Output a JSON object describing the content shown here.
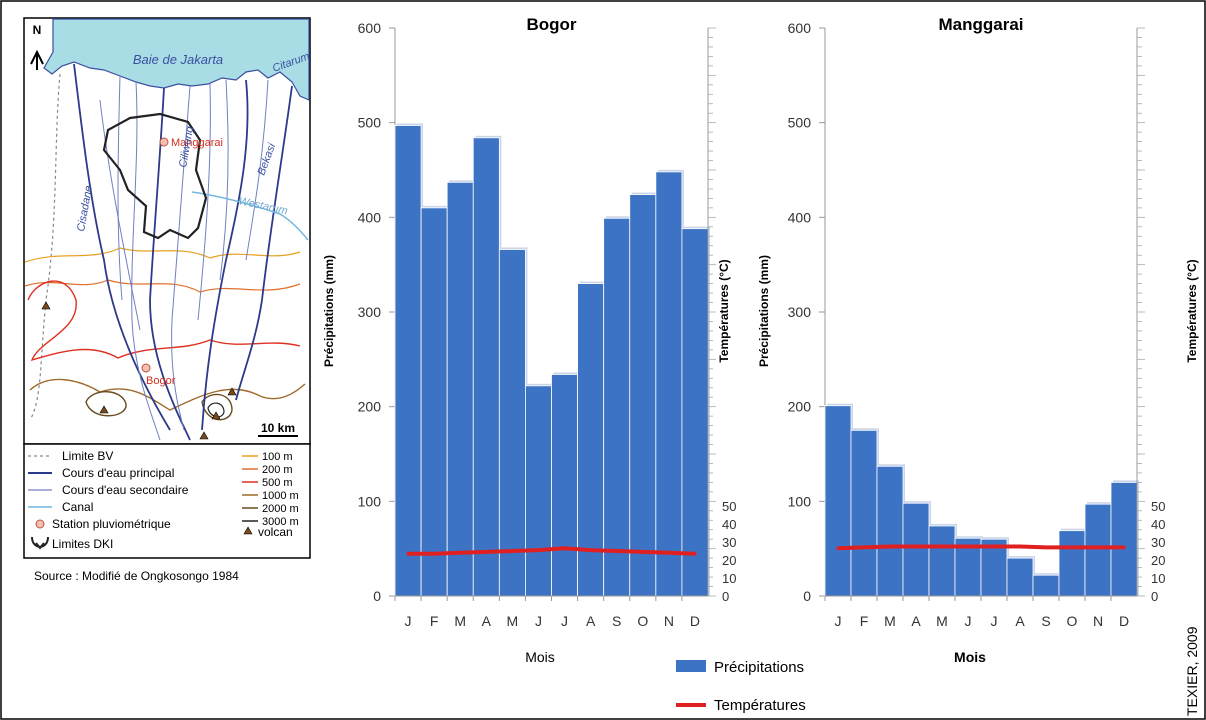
{
  "map": {
    "sea_label": "Baie de Jakarta",
    "north_label": "N",
    "scale_label": "10 km",
    "station_labels": [
      "Manggarai",
      "Bogor"
    ],
    "river_labels": [
      "Citarum",
      "Ciliwung",
      "Bekasi",
      "Cisadane",
      "Westarum"
    ],
    "legend_left": [
      "Limite BV",
      "Cours d'eau principal",
      "Cours d'eau secondaire",
      "Canal",
      "Station pluviométrique",
      "Limites DKI"
    ],
    "legend_right": [
      "100 m",
      "200 m",
      "500 m",
      "1000 m",
      "2000 m",
      "3000 m",
      "volcan"
    ],
    "source": "Source : Modifié de Ongkosongo 1984"
  },
  "legend": {
    "precip_label": "Précipitations",
    "temp_label": "Températures"
  },
  "credit": "TEXIER, 2009",
  "colors": {
    "bar": "#3d73c4",
    "bar_edge": "#c9d5ea",
    "temp_line": "#e02020",
    "sea": "#a8dde5",
    "contour_100": "#e8a020",
    "contour_200": "#e07030",
    "contour_500": "#e03020",
    "contour_1000": "#a06a2a",
    "contour_2000": "#6a4a20",
    "contour_3000": "#222222",
    "river_main": "#2b3a8a",
    "river_secondary": "#7080c0",
    "canal": "#70b8e0"
  },
  "chart_data": [
    {
      "type": "bar",
      "title": "Bogor",
      "xlabel": "Mois",
      "ylabel": "Précipitations (mm)",
      "y2label": "Températures (°C)",
      "categories": [
        "J",
        "F",
        "M",
        "A",
        "M",
        "J",
        "J",
        "A",
        "S",
        "O",
        "N",
        "D"
      ],
      "ylim": [
        0,
        600
      ],
      "yticks": [
        0,
        100,
        200,
        300,
        400,
        500,
        600
      ],
      "y2lim": [
        0,
        50
      ],
      "y2ticks": [
        0,
        10,
        20,
        30,
        40,
        50
      ],
      "series": [
        {
          "name": "Précipitations",
          "type": "bar",
          "axis": "left",
          "values": [
            497,
            410,
            437,
            484,
            366,
            222,
            234,
            330,
            399,
            424,
            448,
            388
          ]
        },
        {
          "name": "Températures",
          "type": "line",
          "axis": "right",
          "values": [
            23.5,
            23.5,
            24,
            24.5,
            25,
            25.5,
            26.5,
            25.5,
            25,
            24.5,
            24,
            23.5
          ]
        }
      ]
    },
    {
      "type": "bar",
      "title": "Manggarai",
      "xlabel": "Mois",
      "ylabel": "Précipitations (mm)",
      "y2label": "Températures (°C)",
      "categories": [
        "J",
        "F",
        "M",
        "A",
        "M",
        "J",
        "J",
        "A",
        "S",
        "O",
        "N",
        "D"
      ],
      "ylim": [
        0,
        600
      ],
      "yticks": [
        0,
        100,
        200,
        300,
        400,
        500,
        600
      ],
      "y2lim": [
        0,
        50
      ],
      "y2ticks": [
        0,
        10,
        20,
        30,
        40,
        50
      ],
      "series": [
        {
          "name": "Précipitations",
          "type": "bar",
          "axis": "left",
          "values": [
            201,
            175,
            137,
            98,
            74,
            61,
            60,
            40,
            22,
            69,
            97,
            120
          ]
        },
        {
          "name": "Températures",
          "type": "line",
          "axis": "right",
          "values": [
            26.5,
            27,
            27.5,
            27.5,
            27.5,
            27.5,
            27.5,
            27.5,
            27,
            27,
            27,
            27
          ]
        }
      ]
    }
  ]
}
